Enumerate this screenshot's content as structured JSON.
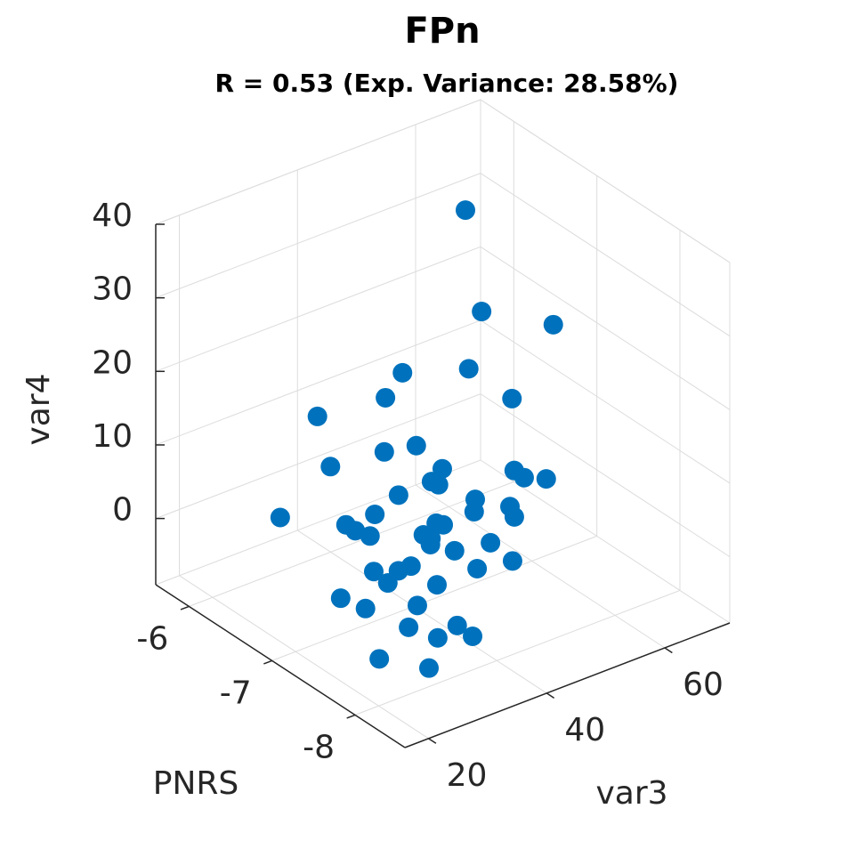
{
  "chart_data": {
    "type": "scatter3d",
    "title": "FPn",
    "subtitle": "R = 0.53 (Exp. Variance: 28.58%)",
    "xlabel": "PNRS",
    "ylabel": "var3",
    "zlabel": "var4",
    "color": "#0072bd",
    "grid": true,
    "xlim": [
      -8.6,
      -5.6
    ],
    "ylim": [
      16,
      71
    ],
    "zlim": [
      -9,
      40
    ],
    "xticks": [
      -8,
      -7,
      -6
    ],
    "yticks": [
      20,
      40,
      60
    ],
    "zticks": [
      0,
      10,
      20,
      30,
      40
    ],
    "x": [
      -6.2,
      -6.8,
      -7.4,
      -7.1,
      -6.8,
      -7.4,
      -7.1,
      -6.8,
      -7.4,
      -7.1,
      -6.8,
      -7.4,
      -7.1,
      -6.8,
      -7.4,
      -7.1,
      -6.8,
      -7.4,
      -7.1,
      -6.8,
      -7.4,
      -7.1,
      -6.8,
      -7.4,
      -7.1,
      -6.8,
      -7.4,
      -7.1,
      -6.8,
      -7.4,
      -7.1,
      -6.8,
      -7.4,
      -7.1,
      -7.4,
      -7.4,
      -7.1,
      -7.4,
      -7.4,
      -7.1,
      -7.4,
      -7.4,
      -7.1,
      -7.4,
      -7.4,
      -7.8,
      -7.9,
      -7.9,
      -7.9,
      -8.1
    ],
    "y": [
      60.0,
      54.3,
      58.0,
      47.9,
      40.9,
      51.0,
      33.8,
      26.5,
      34.8,
      33.6,
      28.7,
      39.2,
      55.6,
      61.5,
      56.8,
      41.6,
      47.0,
      31.8,
      49.0,
      59.1,
      44.6,
      32.0,
      20.2,
      51.4,
      42.4,
      47.8,
      22.9,
      28.7,
      35.4,
      36.0,
      41.5,
      55.8,
      37.2,
      45.5,
      51.1,
      33.9,
      36.0,
      45.1,
      27.6,
      34.2,
      38.3,
      22.0,
      39.2,
      26.2,
      33.5,
      36.1,
      37.3,
      31.4,
      21.5,
      27.1
    ],
    "z": [
      32.8,
      25.2,
      26.7,
      21.6,
      21.0,
      18.8,
      22.0,
      19.5,
      17.4,
      14.7,
      12.0,
      12.9,
      5.4,
      0.4,
      6.1,
      8.2,
      3.9,
      11.6,
      3.5,
      -2.8,
      5.4,
      6.7,
      7.7,
      2.6,
      2.3,
      -1.8,
      10.3,
      5.5,
      0.5,
      4.9,
      0.5,
      -6.7,
      3.2,
      -2.4,
      -3.3,
      1.3,
      -2.2,
      -2.5,
      2.5,
      -3.3,
      -2.6,
      0.6,
      -7.9,
      -2.1,
      -6.9,
      -4.5,
      -5.6,
      -4.0,
      -3.8,
      -5.3
    ]
  }
}
